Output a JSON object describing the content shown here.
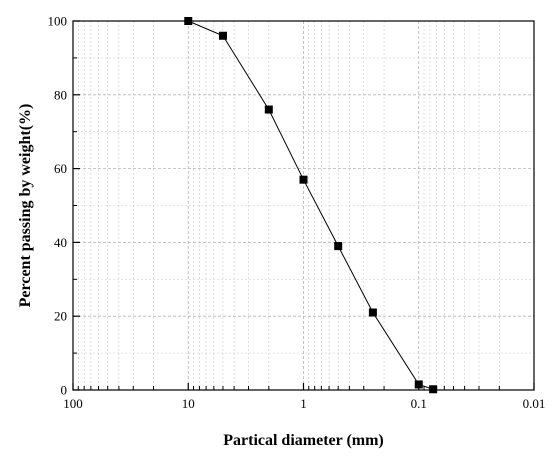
{
  "chart_data": {
    "type": "line",
    "title": "",
    "xlabel": "Partical diameter (mm)",
    "ylabel": "Percent passing by weight(%)",
    "x_scale": "log",
    "x_reversed": true,
    "xlim": [
      100,
      0.01
    ],
    "ylim": [
      0,
      100
    ],
    "grid": true,
    "legend": "none",
    "x_ticks": [
      100,
      10,
      1,
      0.1,
      0.01
    ],
    "x_tick_labels": [
      "100",
      "10",
      "1",
      "0.1",
      "0.01"
    ],
    "y_ticks": [
      0,
      20,
      40,
      60,
      80,
      100
    ],
    "y_tick_labels": [
      "0",
      "20",
      "40",
      "60",
      "80",
      "100"
    ],
    "marker": "square",
    "color": "#000000",
    "series": [
      {
        "x": [
          10,
          5,
          2,
          1,
          0.5,
          0.25,
          0.1,
          0.075
        ],
        "y": [
          100,
          96,
          76,
          57,
          39,
          21,
          1.5,
          0.2
        ]
      }
    ]
  }
}
